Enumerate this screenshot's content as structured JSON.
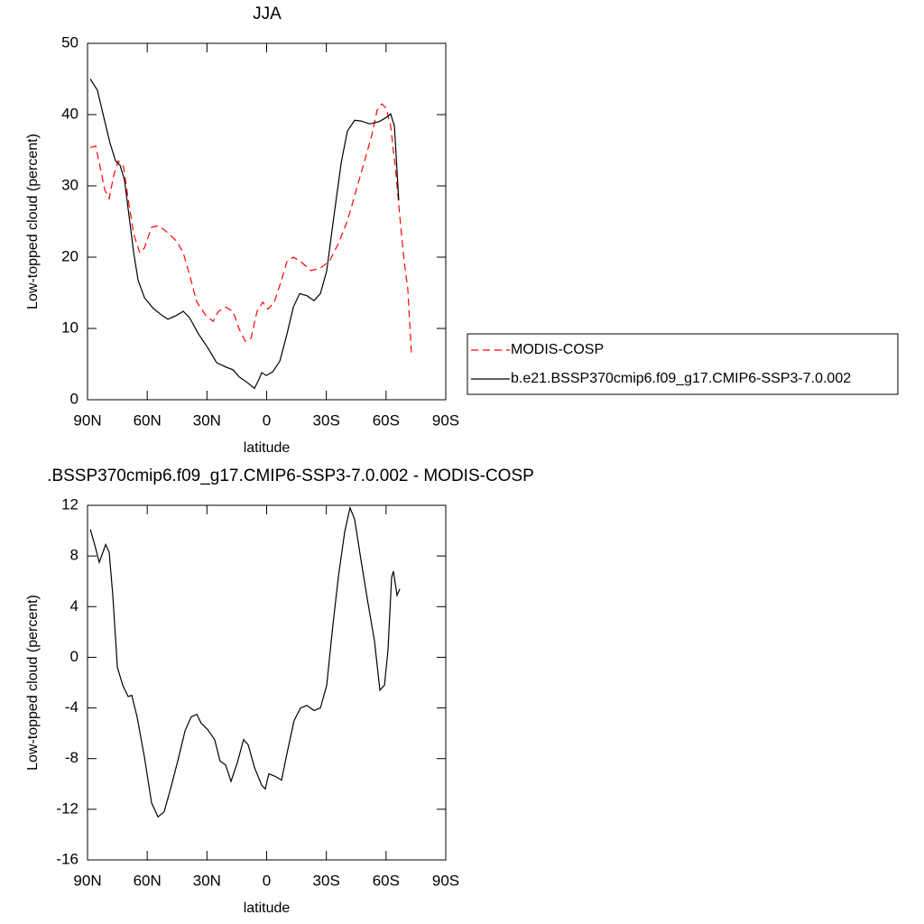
{
  "chart_data": [
    {
      "type": "line",
      "title": "JJA",
      "xlabel": "latitude",
      "ylabel": "Low-topped cloud (percent)",
      "xlim": [
        90,
        -90
      ],
      "xticks": [
        {
          "value": 90,
          "label": "90N"
        },
        {
          "value": 60,
          "label": "60N"
        },
        {
          "value": 30,
          "label": "30N"
        },
        0,
        {
          "value": -30,
          "label": "30S"
        },
        {
          "value": -60,
          "label": "60S"
        },
        {
          "value": -90,
          "label": "90S"
        }
      ],
      "ylim": [
        0,
        50
      ],
      "yticks": [
        0,
        10,
        20,
        30,
        40,
        50
      ],
      "legend": "right",
      "series": [
        {
          "name": "MODIS-COSP",
          "color": "#ff0000",
          "line_style": "dashed",
          "x": [
            88.6,
            85.9,
            83.7,
            81.4,
            79.1,
            76.9,
            74.6,
            71.9,
            69.6,
            66.8,
            63.7,
            61.4,
            57.8,
            54.2,
            49.6,
            45.1,
            41.9,
            38.7,
            35.1,
            30.5,
            26.9,
            24.2,
            20.6,
            16.9,
            13.8,
            10.7,
            7.9,
            4.8,
            2.0,
            -0.7,
            -3.8,
            -7.5,
            -10.2,
            -13.4,
            -17.0,
            -22.4,
            -27.0,
            -31.5,
            -36.0,
            -40.6,
            -45.1,
            -49.6,
            -52.8,
            -55.5,
            -57.8,
            -60.1,
            -62.3,
            -64.6,
            -66.9,
            -69.1,
            -70.9,
            -72.8
          ],
          "values": [
            35.4,
            35.6,
            32.7,
            29.5,
            28.2,
            31.4,
            33.5,
            32.7,
            28.2,
            23.2,
            20.6,
            21.3,
            24.2,
            24.4,
            23.4,
            22.2,
            20.6,
            17.5,
            13.7,
            11.8,
            11.0,
            12.4,
            13.0,
            12.4,
            9.9,
            8.2,
            8.6,
            12.4,
            13.7,
            12.7,
            13.7,
            16.8,
            19.4,
            20.0,
            19.4,
            18.1,
            18.5,
            19.4,
            21.9,
            25.1,
            29.5,
            33.9,
            37.1,
            40.6,
            41.5,
            40.9,
            38.4,
            32.7,
            25.7,
            19.4,
            15.6,
            6.1
          ]
        },
        {
          "name": "b.e21.BSSP370cmip6.f09_g17.CMIP6-SSP3-7.0.002",
          "color": "#000000",
          "line_style": "solid",
          "x": [
            88.6,
            85.0,
            81.8,
            78.7,
            75.9,
            73.7,
            71.4,
            69.1,
            66.8,
            64.6,
            61.4,
            56.9,
            52.4,
            49.6,
            45.5,
            41.9,
            38.7,
            34.2,
            29.6,
            25.1,
            20.6,
            16.9,
            13.8,
            9.2,
            6.1,
            3.8,
            2.5,
            0.2,
            -3.0,
            -6.6,
            -10.2,
            -13.4,
            -16.6,
            -20.2,
            -23.8,
            -27.0,
            -30.2,
            -33.8,
            -37.5,
            -40.6,
            -44.2,
            -47.4,
            -51.9,
            -56.4,
            -60.1,
            -62.3,
            -64.2,
            -66.4
          ],
          "values": [
            45.0,
            43.4,
            39.6,
            36.0,
            33.5,
            32.9,
            30.8,
            25.7,
            20.6,
            16.8,
            14.3,
            12.8,
            11.8,
            11.3,
            11.8,
            12.4,
            11.5,
            9.2,
            7.3,
            5.2,
            4.6,
            4.2,
            3.2,
            2.3,
            1.6,
            2.9,
            3.8,
            3.4,
            3.9,
            5.4,
            9.2,
            13.0,
            14.9,
            14.6,
            13.9,
            14.9,
            18.1,
            25.7,
            33.3,
            37.7,
            39.2,
            39.1,
            38.7,
            39.0,
            39.6,
            40.1,
            38.4,
            28.0
          ]
        }
      ]
    },
    {
      "type": "line",
      "title": ".BSSP370cmip6.f09_g17.CMIP6-SSP3-7.0.002 - MODIS-COSP",
      "xlabel": "latitude",
      "ylabel": "Low-topped cloud (percent)",
      "xlim": [
        90,
        -90
      ],
      "xticks": [
        {
          "value": 90,
          "label": "90N"
        },
        {
          "value": 60,
          "label": "60N"
        },
        {
          "value": 30,
          "label": "30N"
        },
        0,
        {
          "value": -30,
          "label": "30S"
        },
        {
          "value": -60,
          "label": "60S"
        },
        {
          "value": -90,
          "label": "90S"
        }
      ],
      "ylim": [
        -16,
        12
      ],
      "yticks": [
        -16,
        -12,
        -8,
        -4,
        0,
        4,
        8,
        12
      ],
      "color": "#000000",
      "x": [
        88.6,
        86.4,
        84.1,
        80.9,
        79.1,
        77.3,
        75.0,
        72.3,
        69.6,
        67.8,
        65.1,
        61.4,
        57.8,
        54.6,
        51.5,
        47.8,
        44.2,
        41.0,
        37.9,
        35.1,
        32.9,
        29.7,
        26.1,
        23.4,
        20.6,
        17.9,
        14.7,
        11.6,
        9.3,
        6.1,
        2.5,
        0.7,
        -1.1,
        -4.3,
        -7.5,
        -10.2,
        -13.8,
        -17.0,
        -20.2,
        -23.8,
        -27.0,
        -30.2,
        -32.9,
        -36.0,
        -39.2,
        -41.9,
        -44.2,
        -47.4,
        -51.0,
        -54.2,
        -56.9,
        -59.2,
        -61.0,
        -62.8,
        -63.7,
        -65.5,
        -66.9
      ],
      "values": [
        10.1,
        8.9,
        7.5,
        8.9,
        8.3,
        4.9,
        -0.8,
        -2.2,
        -3.1,
        -3.0,
        -4.7,
        -7.9,
        -11.5,
        -12.6,
        -12.2,
        -10.1,
        -7.9,
        -5.8,
        -4.7,
        -4.5,
        -5.2,
        -5.7,
        -6.5,
        -8.2,
        -8.5,
        -9.8,
        -8.3,
        -6.5,
        -6.9,
        -8.7,
        -10.1,
        -10.4,
        -9.2,
        -9.4,
        -9.7,
        -7.6,
        -5.0,
        -4.0,
        -3.8,
        -4.2,
        -4.0,
        -2.2,
        2.0,
        6.3,
        9.9,
        11.8,
        10.9,
        7.7,
        4.2,
        1.3,
        -2.6,
        -2.2,
        0.6,
        6.3,
        6.8,
        4.9,
        5.4
      ]
    }
  ]
}
